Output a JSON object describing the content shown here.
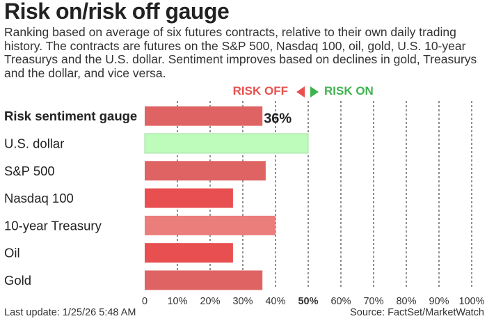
{
  "title": "Risk on/risk off gauge",
  "subtitle": "Ranking based on average of six futures contracts, relative to their own daily trading history. The contracts are futures on the S&P 500, Nasdaq 100, oil, gold, U.S. 10-year Treasurys and the U.S. dollar. Sentiment improves based on declines in gold, Treasurys and the dollar, and vice versa.",
  "legend": {
    "risk_off": "RISK OFF",
    "risk_on": "RISK ON"
  },
  "footer": {
    "last_update": "Last update: 1/25/26 5:48 AM",
    "source": "Source: FactSet/MarketWatch"
  },
  "colors": {
    "bar_default": "#e06363",
    "bar_light_red": "#eb7d7b",
    "bar_strong_red": "#e84f50",
    "bar_green": "#bdfcbb",
    "green_border": "#9fe0a0",
    "risk_off": "#e8514e",
    "risk_on": "#3fb34f",
    "gridline": "#222222"
  },
  "chart_data": {
    "type": "bar",
    "orientation": "horizontal",
    "categories": [
      "Risk sentiment gauge",
      "U.S. dollar",
      "S&P 500",
      "Nasdaq 100",
      "10-year Treasury",
      "Oil",
      "Gold"
    ],
    "values": [
      36,
      50,
      37,
      27,
      40,
      27,
      36
    ],
    "bar_colors": [
      "#e06363",
      "#bdfcbb",
      "#e06363",
      "#e84f50",
      "#eb7d7b",
      "#e84f50",
      "#e06363"
    ],
    "data_labels": [
      "36%",
      "",
      "",
      "",
      "",
      "",
      ""
    ],
    "bold_categories": [
      "Risk sentiment gauge"
    ],
    "xlim": [
      0,
      100
    ],
    "x_ticks": [
      "0",
      "10%",
      "20%",
      "30%",
      "40%",
      "50%",
      "60%",
      "70%",
      "80%",
      "90%",
      "100%"
    ],
    "midpoint": 50,
    "grid": "vertical dashed",
    "legend_position": "top"
  }
}
